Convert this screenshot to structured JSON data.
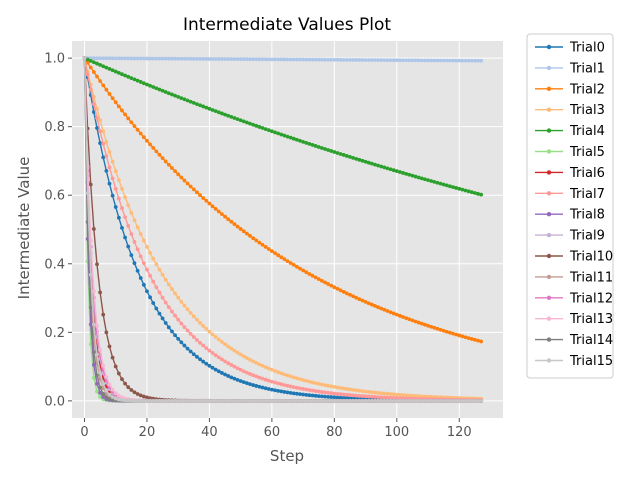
{
  "chart_data": {
    "type": "line",
    "title": "Intermediate Values Plot",
    "xlabel": "Step",
    "ylabel": "Intermediate Value",
    "xlim": [
      -4,
      134
    ],
    "ylim": [
      -0.05,
      1.05
    ],
    "xticks": [
      0,
      20,
      40,
      60,
      80,
      100,
      120
    ],
    "yticks": [
      0.0,
      0.2,
      0.4,
      0.6,
      0.8,
      1.0
    ],
    "xtick_labels": [
      "0",
      "20",
      "40",
      "60",
      "80",
      "100",
      "120"
    ],
    "ytick_labels": [
      "0.0",
      "0.2",
      "0.4",
      "0.6",
      "0.8",
      "1.0"
    ],
    "grid": true,
    "legend_position": "outside-right",
    "steps": 128,
    "series_model": "exponential decay y = exp(-k * step)",
    "series": [
      {
        "name": "Trial0",
        "color": "#1f77b4",
        "decay_rate": 0.057
      },
      {
        "name": "Trial1",
        "color": "#aec7e8",
        "decay_rate": 6e-05
      },
      {
        "name": "Trial2",
        "color": "#ff7f0e",
        "decay_rate": 0.0138
      },
      {
        "name": "Trial3",
        "color": "#ffbb78",
        "decay_rate": 0.04
      },
      {
        "name": "Trial4",
        "color": "#2ca02c",
        "decay_rate": 0.004
      },
      {
        "name": "Trial5",
        "color": "#98df8a",
        "decay_rate": 0.9
      },
      {
        "name": "Trial6",
        "color": "#d62728",
        "decay_rate": 0.45
      },
      {
        "name": "Trial7",
        "color": "#ff9896",
        "decay_rate": 0.048
      },
      {
        "name": "Trial8",
        "color": "#9467bd",
        "decay_rate": 0.75
      },
      {
        "name": "Trial9",
        "color": "#c5b0d5",
        "decay_rate": 0.42
      },
      {
        "name": "Trial10",
        "color": "#8c564b",
        "decay_rate": 0.23
      },
      {
        "name": "Trial11",
        "color": "#c49c94",
        "decay_rate": 0.55
      },
      {
        "name": "Trial12",
        "color": "#e377c2",
        "decay_rate": 0.4
      },
      {
        "name": "Trial13",
        "color": "#f7b6d2",
        "decay_rate": 0.38
      },
      {
        "name": "Trial14",
        "color": "#7f7f7f",
        "decay_rate": 0.65
      },
      {
        "name": "Trial15",
        "color": "#c7c7c7",
        "decay_rate": 0.5
      }
    ],
    "colors": {
      "plot_background": "#e5e5e5",
      "grid": "#ffffff",
      "tick_text": "#555555",
      "legend_border": "#cccccc"
    }
  }
}
